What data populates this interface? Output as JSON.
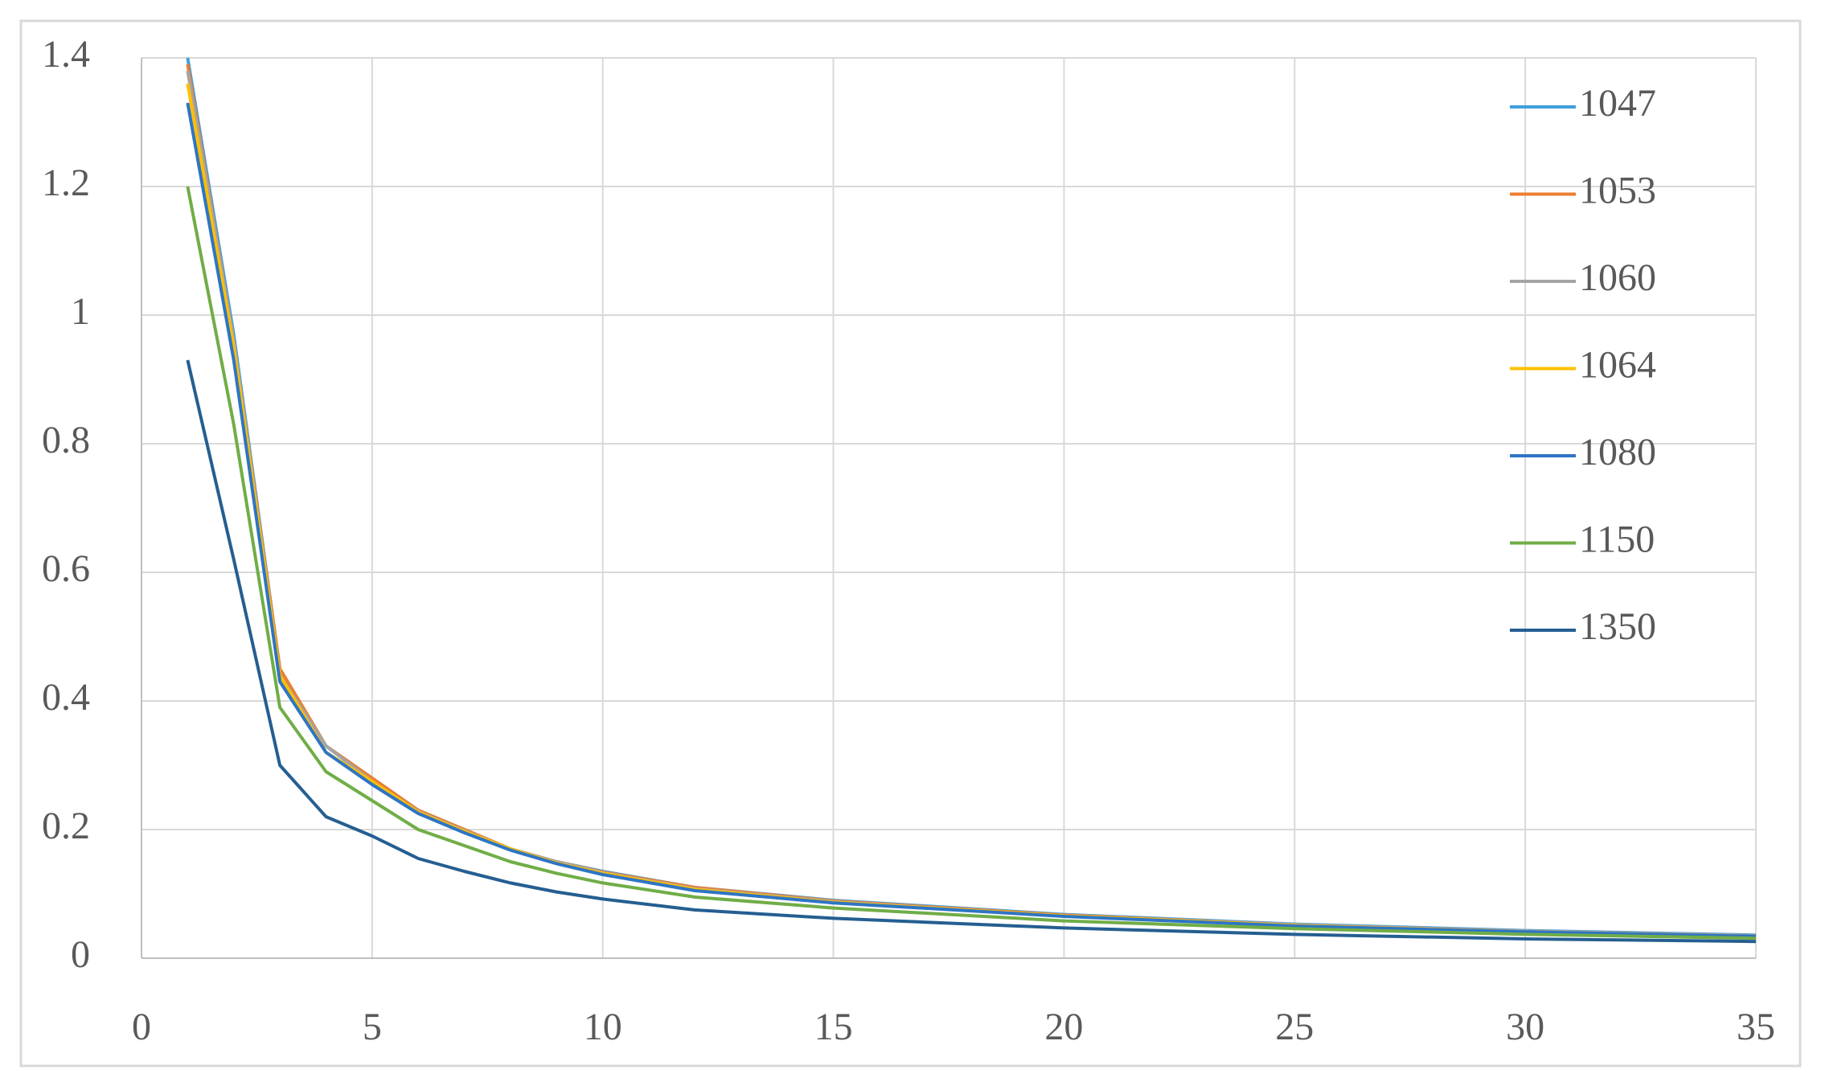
{
  "chart_data": {
    "type": "line",
    "x": [
      1,
      2,
      3,
      4,
      5,
      6,
      7,
      8,
      9,
      10,
      12,
      15,
      20,
      25,
      30,
      35
    ],
    "series": [
      {
        "name": "1047",
        "color": "#3f9fdc",
        "values": [
          1.4,
          0.97,
          0.45,
          0.33,
          0.28,
          0.23,
          0.2,
          0.17,
          0.15,
          0.135,
          0.11,
          0.09,
          0.068,
          0.053,
          0.043,
          0.036
        ]
      },
      {
        "name": "1053",
        "color": "#ed7d31",
        "values": [
          1.39,
          0.96,
          0.45,
          0.33,
          0.28,
          0.23,
          0.2,
          0.17,
          0.15,
          0.134,
          0.11,
          0.089,
          0.067,
          0.052,
          0.042,
          0.035
        ]
      },
      {
        "name": "1060",
        "color": "#a5a5a5",
        "values": [
          1.38,
          0.96,
          0.44,
          0.33,
          0.275,
          0.228,
          0.198,
          0.17,
          0.15,
          0.133,
          0.108,
          0.088,
          0.066,
          0.052,
          0.042,
          0.035
        ]
      },
      {
        "name": "1064",
        "color": "#ffc000",
        "values": [
          1.36,
          0.95,
          0.44,
          0.32,
          0.275,
          0.227,
          0.197,
          0.17,
          0.148,
          0.132,
          0.107,
          0.087,
          0.066,
          0.051,
          0.041,
          0.034
        ]
      },
      {
        "name": "1080",
        "color": "#2e75c4",
        "values": [
          1.33,
          0.93,
          0.43,
          0.32,
          0.27,
          0.225,
          0.195,
          0.168,
          0.147,
          0.13,
          0.105,
          0.086,
          0.065,
          0.05,
          0.041,
          0.034
        ]
      },
      {
        "name": "1150",
        "color": "#70ad47",
        "values": [
          1.2,
          0.83,
          0.39,
          0.29,
          0.245,
          0.2,
          0.175,
          0.15,
          0.132,
          0.117,
          0.095,
          0.078,
          0.058,
          0.046,
          0.037,
          0.031
        ]
      },
      {
        "name": "1350",
        "color": "#255e91",
        "values": [
          0.93,
          0.62,
          0.3,
          0.22,
          0.19,
          0.155,
          0.135,
          0.117,
          0.103,
          0.092,
          0.075,
          0.062,
          0.047,
          0.037,
          0.03,
          0.026
        ]
      }
    ],
    "xlim": [
      0,
      35
    ],
    "xticks": [
      0,
      5,
      10,
      15,
      20,
      25,
      30,
      35
    ],
    "ylim": [
      0,
      1.4
    ],
    "yticks": [
      0,
      0.2,
      0.4,
      0.6,
      0.8,
      1,
      1.2,
      1.4
    ],
    "grid": true,
    "legend": "upper right"
  }
}
